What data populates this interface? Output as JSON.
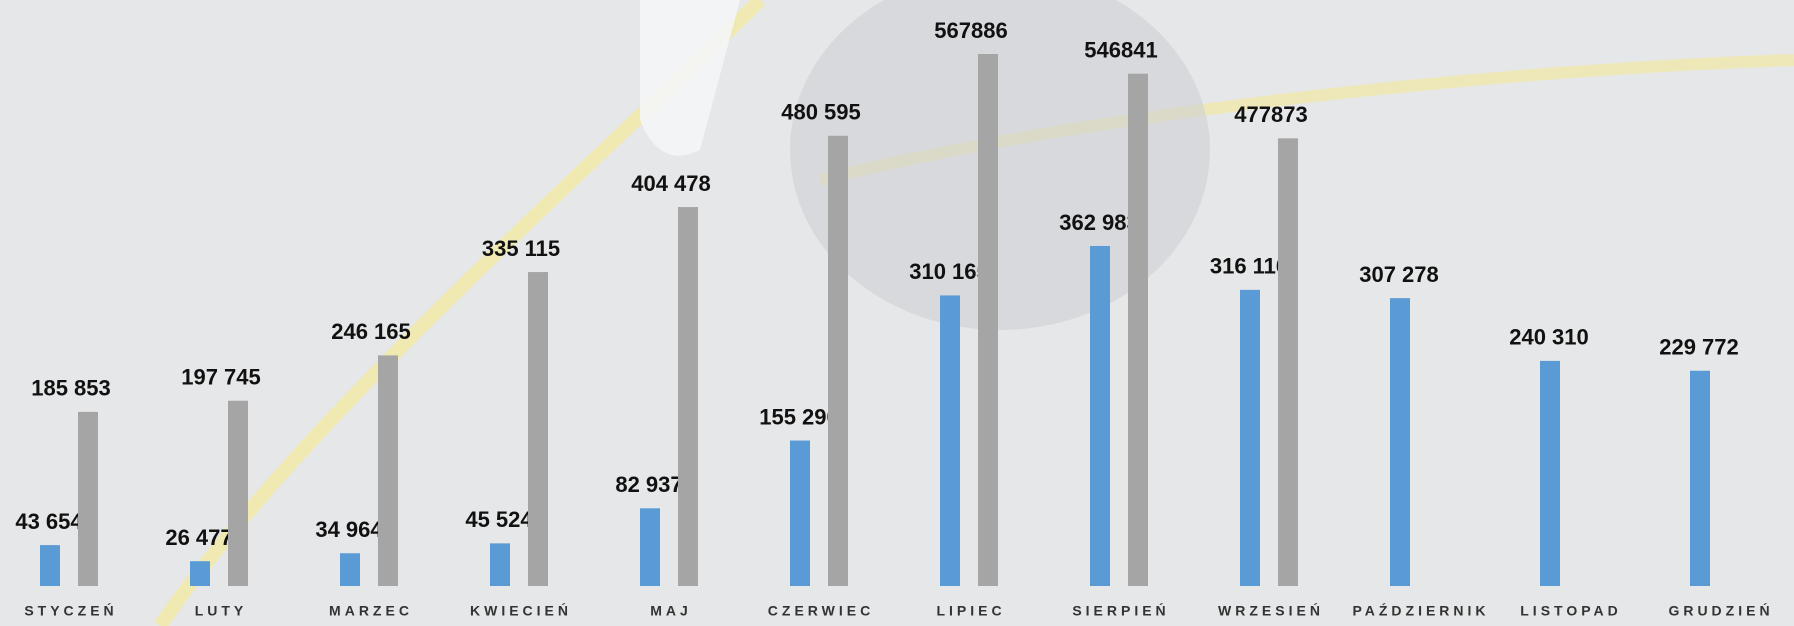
{
  "chart_data": {
    "type": "bar",
    "categories": [
      "STYCZEŃ",
      "LUTY",
      "MARZEC",
      "KWIECIEŃ",
      "MAJ",
      "CZERWIEC",
      "LIPIEC",
      "SIERPIEŃ",
      "WRZESIEŃ",
      "PAŹDZIERNIK",
      "LISTOPAD",
      "GRUDZIEŃ"
    ],
    "series": [
      {
        "color": "#5b9bd5",
        "values": [
          43654,
          26477,
          34964,
          45524,
          82937,
          155290,
          310165,
          362983,
          316116,
          307278,
          240310,
          229772
        ],
        "value_labels": [
          "43 654",
          "26 477",
          "34 964",
          "45 524",
          "82 937",
          "155 290",
          "310 165",
          "362 983",
          "316 116",
          "307 278",
          "240 310",
          "229 772"
        ]
      },
      {
        "color": "#a5a5a5",
        "values": [
          185853,
          197745,
          246165,
          335115,
          404478,
          480595,
          567886,
          546841,
          477873,
          null,
          null,
          null
        ],
        "value_labels": [
          "185 853",
          "197 745",
          "246 165",
          "335 115",
          "404 478",
          "480 595",
          "567886",
          "546841",
          "477873",
          null,
          null,
          null
        ]
      }
    ]
  }
}
